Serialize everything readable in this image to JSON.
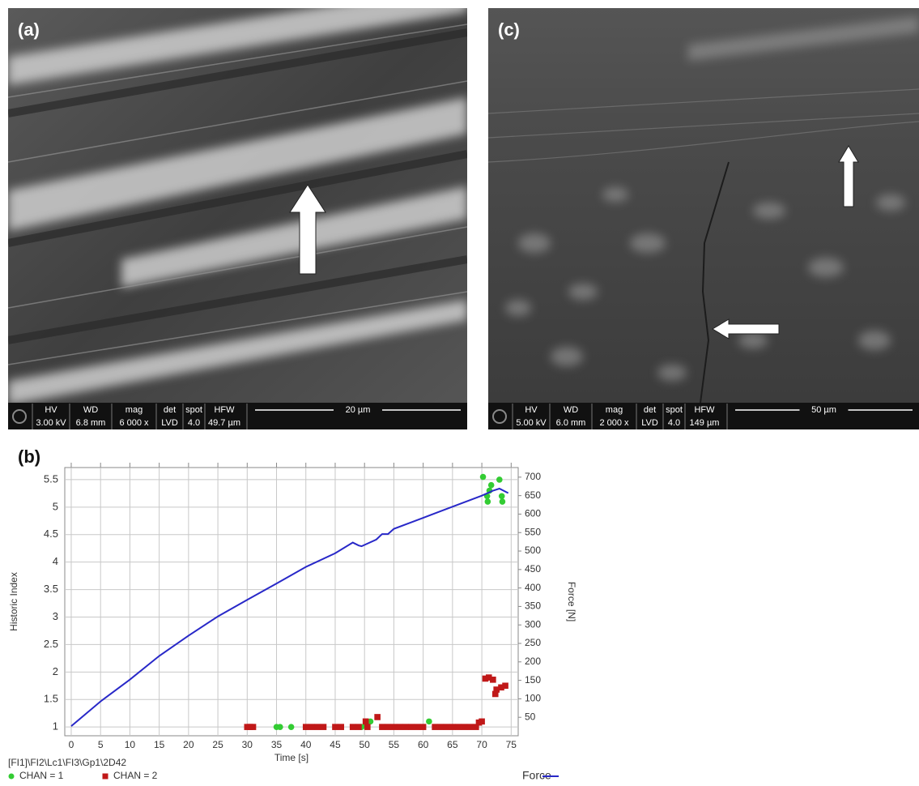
{
  "panels": {
    "a": {
      "label": "(a)",
      "info": [
        {
          "label": "HV",
          "value": "3.00 kV"
        },
        {
          "label": "WD",
          "value": "6.8 mm"
        },
        {
          "label": "mag",
          "value": "6 000 x"
        },
        {
          "label": "det",
          "value": "LVD"
        },
        {
          "label": "spot",
          "value": "4.0"
        },
        {
          "label": "HFW",
          "value": "49.7 µm"
        }
      ],
      "scale": "20 µm"
    },
    "c": {
      "label": "(c)",
      "info": [
        {
          "label": "HV",
          "value": "5.00 kV"
        },
        {
          "label": "WD",
          "value": "6.0 mm"
        },
        {
          "label": "mag",
          "value": "2 000 x"
        },
        {
          "label": "det",
          "value": "LVD"
        },
        {
          "label": "spot",
          "value": "4.0"
        },
        {
          "label": "HFW",
          "value": "149 µm"
        }
      ],
      "scale": "50 µm"
    }
  },
  "chart_data": {
    "type": "scatter",
    "label": "(b)",
    "x_label": "Time [s]",
    "y_label": "Historic Index",
    "y2_label": "Force [N]",
    "source": "[FI1]\\FI2\\Lc1\\FI3\\Gp1\\2D42",
    "xlim": [
      -1.1,
      76.2
    ],
    "xticks": [
      0,
      5,
      10,
      15,
      20,
      25,
      30,
      35,
      40,
      45,
      50,
      55,
      60,
      65,
      70,
      75
    ],
    "ylim": [
      0.84,
      5.72
    ],
    "yticks": [
      1,
      1.5,
      2,
      2.5,
      3,
      3.5,
      4,
      4.5,
      5,
      5.5
    ],
    "y2lim": [
      0,
      726
    ],
    "y2ticks": [
      50,
      100,
      150,
      200,
      250,
      300,
      350,
      400,
      450,
      500,
      550,
      600,
      650,
      700
    ],
    "grid": true,
    "series": [
      {
        "name": "CHAN = 1",
        "color": "#33cc33",
        "marker": "circle",
        "x": [
          35,
          35.6,
          37.5,
          40,
          49.5,
          50.3,
          51,
          61,
          70.2,
          70.9,
          71,
          71.3,
          71.6,
          73,
          73.4,
          73.5
        ],
        "values": [
          1,
          1,
          1,
          1,
          1,
          1.05,
          1.1,
          1.1,
          5.55,
          5.2,
          5.1,
          5.3,
          5.4,
          5.5,
          5.2,
          5.1
        ]
      },
      {
        "name": "CHAN = 2",
        "color": "#c01818",
        "marker": "square",
        "x": [
          30,
          30.5,
          31,
          40,
          41,
          42,
          43,
          45,
          46,
          48,
          49,
          50.5,
          53,
          54,
          55,
          56,
          57,
          58,
          59,
          60,
          62,
          63,
          64,
          65,
          66,
          67,
          68,
          69,
          50.2,
          52.2,
          69.5,
          70,
          70.6,
          71.2,
          71.9,
          72.3,
          72.5,
          73.3,
          74
        ],
        "values": [
          1,
          1,
          1,
          1,
          1,
          1,
          1,
          1,
          1,
          1,
          1,
          1,
          1,
          1,
          1,
          1,
          1,
          1,
          1,
          1,
          1,
          1,
          1,
          1,
          1,
          1,
          1,
          1,
          1.1,
          1.18,
          1.08,
          1.1,
          1.88,
          1.9,
          1.86,
          1.6,
          1.68,
          1.72,
          1.75
        ]
      },
      {
        "name": "Force",
        "color": "#2828c8",
        "marker": "line",
        "axis": "y2",
        "x": [
          0,
          5,
          10,
          15,
          20,
          25,
          30,
          35,
          40,
          45,
          48,
          49,
          49.5,
          52,
          53,
          54,
          55,
          60,
          65,
          70,
          72,
          73,
          74.5
        ],
        "values": [
          26,
          93,
          152,
          216,
          271,
          323,
          368,
          412,
          457,
          494,
          523,
          515,
          513,
          531,
          546,
          546,
          560,
          590,
          620,
          650,
          664,
          669,
          657
        ]
      }
    ]
  }
}
